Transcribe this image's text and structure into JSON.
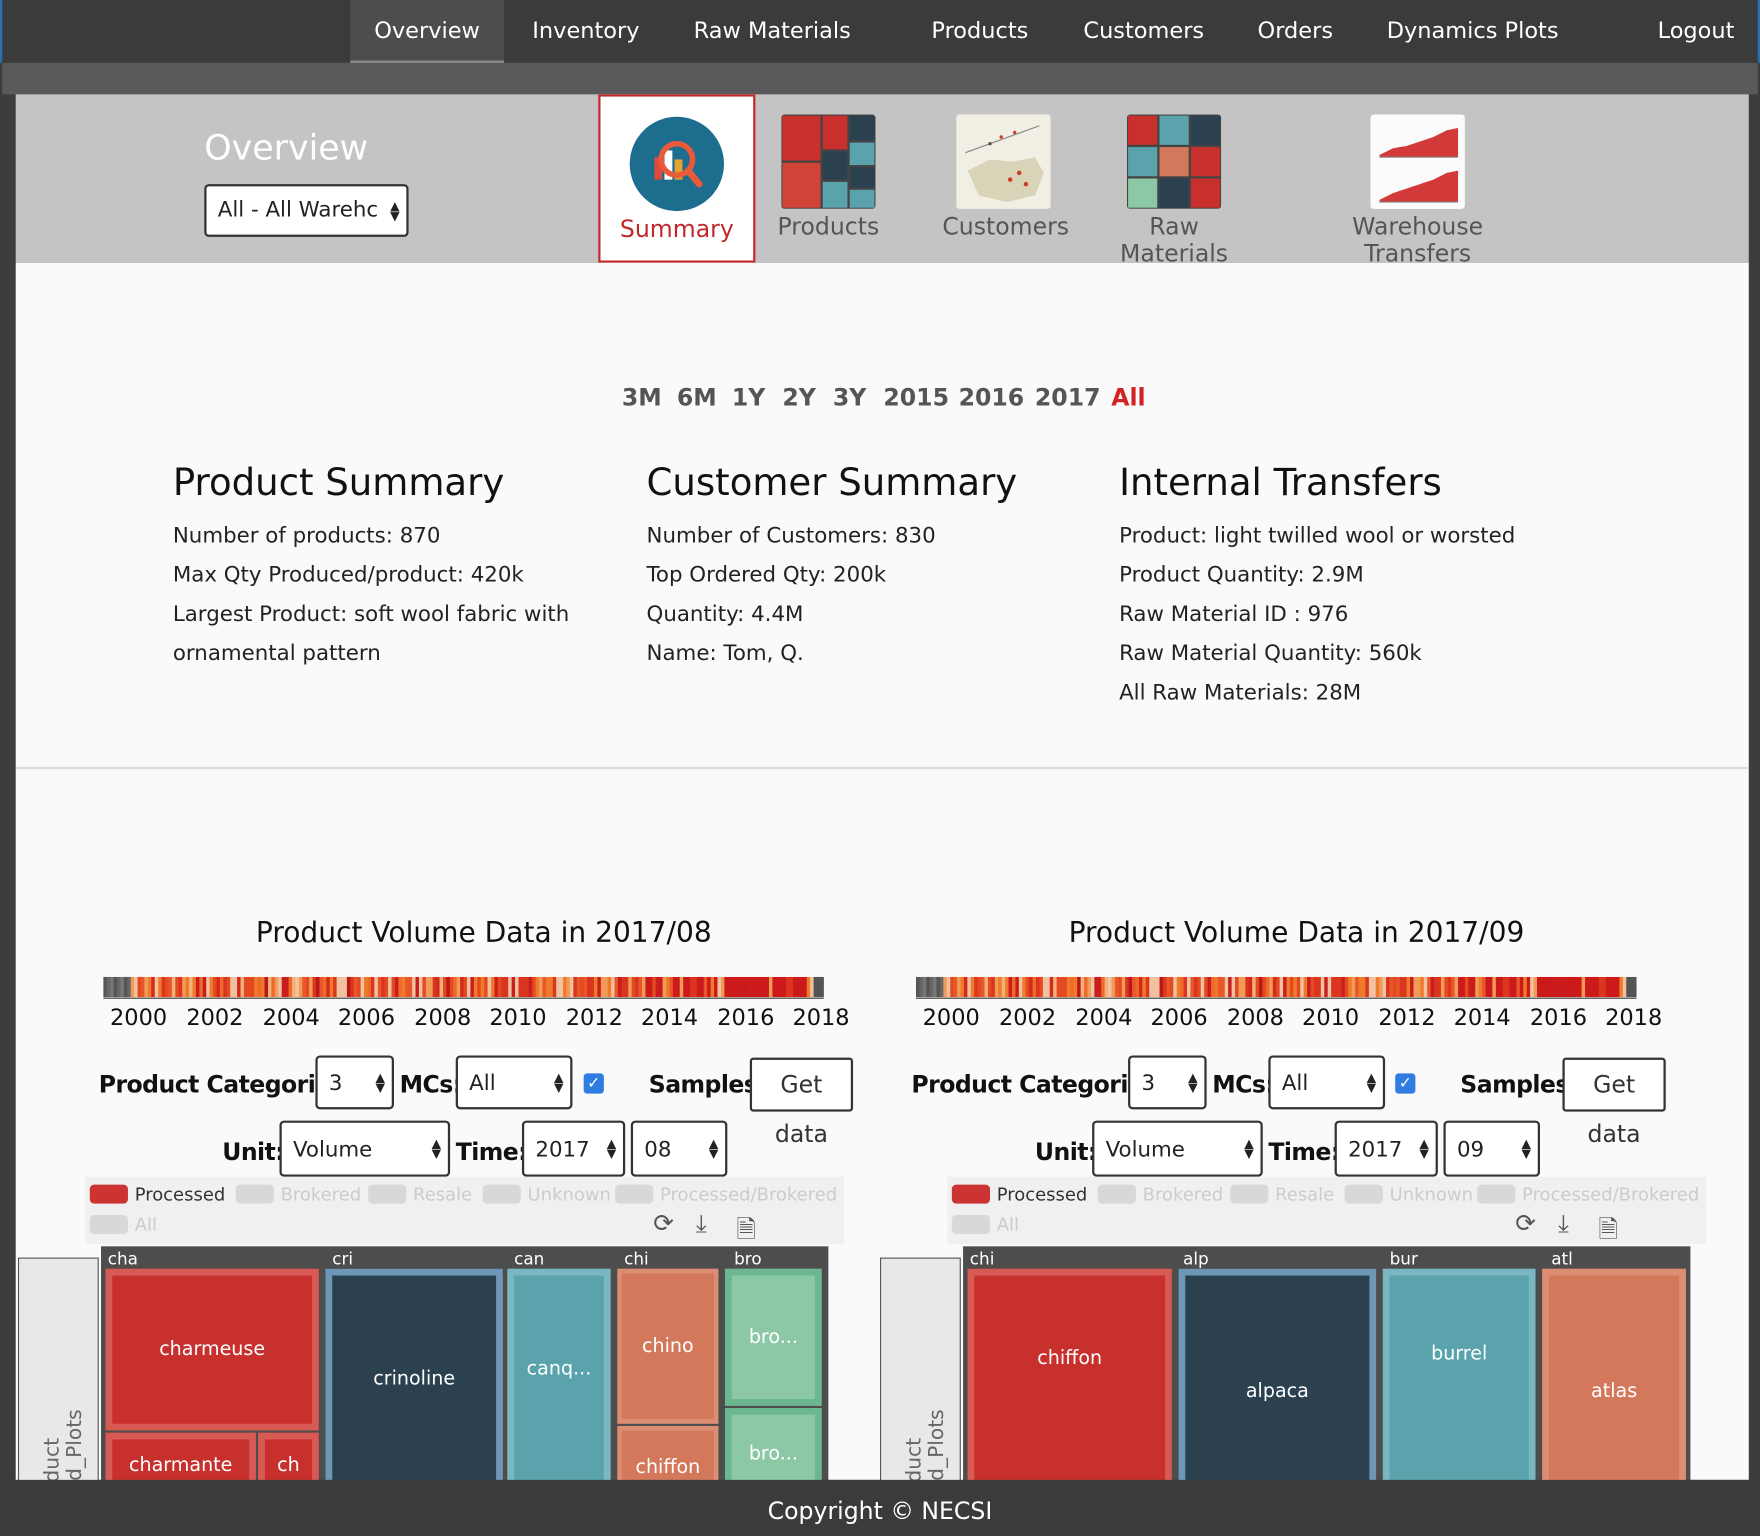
{
  "nav": {
    "items": [
      "Overview",
      "Inventory",
      "Raw Materials",
      "Products",
      "Customers",
      "Orders",
      "Dynamics Plots"
    ],
    "logout": "Logout"
  },
  "header": {
    "title": "Overview",
    "warehouse_select": "All - All Warehc",
    "tabs": [
      "Summary",
      "Products",
      "Customers",
      "Raw Materials",
      "Warehouse Transfers"
    ]
  },
  "ranges": [
    "3M",
    "6M",
    "1Y",
    "2Y",
    "3Y",
    "2015",
    "2016",
    "2017",
    "All"
  ],
  "product_summary": {
    "title": "Product Summary",
    "lines": [
      "Number of products: 870",
      "Max Qty Produced/product: 420k",
      "Largest Product: soft wool fabric with",
      "ornamental pattern"
    ]
  },
  "customer_summary": {
    "title": "Customer Summary",
    "lines": [
      "Number of Customers: 830",
      "Top Ordered Qty: 200k",
      "Quantity: 4.4M",
      "Name: Tom, Q."
    ]
  },
  "internal_transfers": {
    "title": "Internal Transfers",
    "lines": [
      "Product: light twilled wool or worsted",
      "Product Quantity: 2.9M",
      "Raw Material ID : 976",
      "Raw Material Quantity: 560k",
      "All Raw Materials: 28M"
    ]
  },
  "panels": [
    {
      "title": "Product Volume Data in 2017/08",
      "timeline_ticks": [
        "2000",
        "2002",
        "2004",
        "2006",
        "2008",
        "2010",
        "2012",
        "2014",
        "2016",
        "2018"
      ],
      "categories_label": "Product Categories:",
      "categories_value": "3",
      "mcs_label": "MCs:",
      "mcs_value": "All",
      "samples_label": "Samples",
      "get_data": "Get data",
      "unit_label": "Unit:",
      "unit_value": "Volume",
      "time_label": "Time:",
      "year": "2017",
      "month": "08",
      "legend": [
        "Processed",
        "Brokered",
        "Resale",
        "Unknown",
        "Processed/Brokered",
        "All"
      ],
      "side_label": [
        "Product",
        "Field_Plots"
      ],
      "groups": [
        "cha",
        "cri",
        "can",
        "chi",
        "bro"
      ],
      "cells": [
        "charmeuse",
        "charmante",
        "ch",
        "crinoline",
        "canq...",
        "chino",
        "chiffon",
        "bro...",
        "bro..."
      ]
    },
    {
      "title": "Product Volume Data in 2017/09",
      "timeline_ticks": [
        "2000",
        "2002",
        "2004",
        "2006",
        "2008",
        "2010",
        "2012",
        "2014",
        "2016",
        "2018"
      ],
      "categories_label": "Product Categories:",
      "categories_value": "3",
      "mcs_label": "MCs:",
      "mcs_value": "All",
      "samples_label": "Samples",
      "get_data": "Get data",
      "unit_label": "Unit:",
      "unit_value": "Volume",
      "time_label": "Time:",
      "year": "2017",
      "month": "09",
      "legend": [
        "Processed",
        "Brokered",
        "Resale",
        "Unknown",
        "Processed/Brokered",
        "All"
      ],
      "side_label": [
        "Product",
        "Field_Plots"
      ],
      "groups": [
        "chi",
        "alp",
        "bur",
        "atl"
      ],
      "cells": [
        "chiffon",
        "alpaca",
        "burrel",
        "atlas"
      ]
    }
  ],
  "colors": {
    "red": "#c8302e",
    "navy": "#2b4150",
    "teal": "#5aa3ad",
    "salmon": "#d4785b",
    "green": "#8cc7a6",
    "accent": "#c0282b"
  },
  "footer": "Copyright © NECSI"
}
